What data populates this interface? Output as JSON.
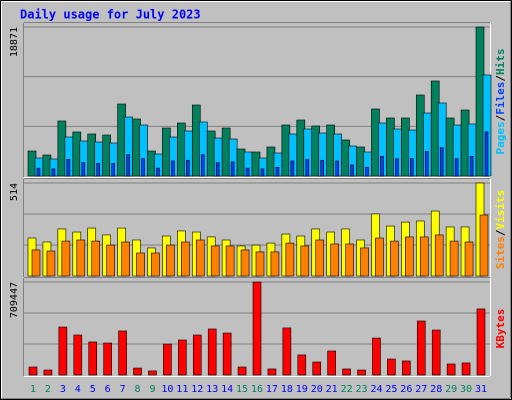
{
  "title": "Daily usage for July 2023",
  "legend_separator": "/",
  "chart_data": [
    {
      "type": "bar",
      "ylim": [
        0,
        18871
      ],
      "yticks": [
        18871
      ],
      "series": [
        {
          "name": "Pages",
          "color": "#00c0ff",
          "values": [
            2280,
            2153,
            4940,
            4433,
            4306,
            4180,
            7473,
            6459,
            2786,
            4940,
            5699,
            6839,
            4813,
            4686,
            3040,
            2280,
            2913,
            5320,
            5953,
            5446,
            5320,
            3800,
            3040,
            6713,
            5953,
            5826,
            7979,
            9246,
            6459,
            6586,
            12792
          ]
        },
        {
          "name": "Files",
          "color": "#0040ff",
          "values": [
            1000,
            900,
            2100,
            1700,
            1600,
            1600,
            2700,
            2200,
            1000,
            1900,
            2000,
            2700,
            1700,
            1800,
            1000,
            900,
            1100,
            1900,
            2100,
            2000,
            1900,
            1400,
            1100,
            2500,
            2200,
            2200,
            3100,
            3600,
            2200,
            2500,
            5600
          ]
        },
        {
          "name": "Hits",
          "color": "#00805c",
          "values": [
            3166,
            2660,
            6966,
            5573,
            5320,
            5193,
            9119,
            7219,
            3166,
            6079,
            6713,
            8992,
            5699,
            6079,
            3420,
            3040,
            3673,
            6459,
            7093,
            6333,
            6459,
            4560,
            3673,
            8486,
            7346,
            7346,
            10259,
            12032,
            7346,
            8359,
            18871
          ]
        }
      ]
    },
    {
      "type": "bar",
      "ylim": [
        0,
        514
      ],
      "yticks": [
        514
      ],
      "series": [
        {
          "name": "Sites",
          "color": "#ff8000",
          "values": [
            144,
            138,
            193,
            199,
            193,
            171,
            188,
            127,
            127,
            171,
            188,
            199,
            166,
            166,
            144,
            133,
            133,
            182,
            166,
            199,
            177,
            177,
            155,
            210,
            193,
            216,
            216,
            227,
            193,
            188,
            337
          ]
        },
        {
          "name": "Visits",
          "color": "#ffff00",
          "values": [
            210,
            188,
            260,
            243,
            265,
            227,
            265,
            199,
            155,
            221,
            249,
            243,
            216,
            199,
            166,
            171,
            182,
            232,
            221,
            260,
            243,
            260,
            199,
            343,
            276,
            298,
            304,
            359,
            271,
            271,
            514
          ]
        }
      ]
    },
    {
      "type": "bar",
      "ylim": [
        0,
        709447
      ],
      "yticks": [
        709447
      ],
      "categories": [
        "1",
        "2",
        "3",
        "4",
        "5",
        "6",
        "7",
        "8",
        "9",
        "10",
        "11",
        "12",
        "13",
        "14",
        "15",
        "16",
        "17",
        "18",
        "19",
        "20",
        "21",
        "22",
        "23",
        "24",
        "25",
        "26",
        "27",
        "28",
        "29",
        "30",
        "31"
      ],
      "category_colors": [
        "#00805c",
        "#00805c",
        "#0000ff",
        "#0000ff",
        "#0000ff",
        "#0000ff",
        "#0000ff",
        "#00805c",
        "#00805c",
        "#0000ff",
        "#0000ff",
        "#0000ff",
        "#0000ff",
        "#0000ff",
        "#00805c",
        "#00805c",
        "#0000ff",
        "#0000ff",
        "#0000ff",
        "#0000ff",
        "#0000ff",
        "#00805c",
        "#00805c",
        "#0000ff",
        "#0000ff",
        "#0000ff",
        "#0000ff",
        "#0000ff",
        "#00805c",
        "#00805c",
        "#0000ff"
      ],
      "series": [
        {
          "name": "KBytes",
          "color": "#ff0000",
          "values": [
            61000,
            38000,
            366000,
            305000,
            252000,
            244000,
            336000,
            53000,
            31000,
            236000,
            267000,
            305000,
            351000,
            320000,
            61000,
            709447,
            46000,
            359000,
            153000,
            99000,
            183000,
            46000,
            38000,
            282000,
            122000,
            107000,
            412000,
            343000,
            84000,
            92000,
            504000
          ]
        }
      ]
    }
  ]
}
